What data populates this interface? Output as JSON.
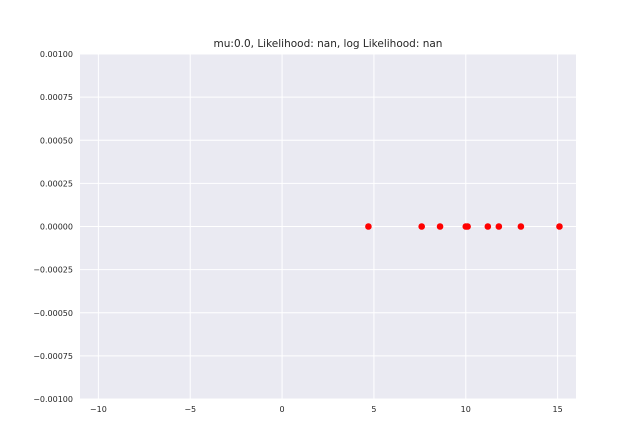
{
  "chart_data": {
    "type": "scatter",
    "title": "mu:0.0, Likelihood:  nan, log Likelihood:  nan",
    "xlabel": "",
    "ylabel": "",
    "xlim": [
      -11,
      16
    ],
    "ylim": [
      -0.001,
      0.001
    ],
    "xticks": [
      -10,
      -5,
      0,
      5,
      10,
      15
    ],
    "xtick_labels": [
      "−10",
      "−5",
      "0",
      "5",
      "10",
      "15"
    ],
    "yticks": [
      -0.001,
      -0.00075,
      -0.0005,
      -0.00025,
      0,
      0.00025,
      0.0005,
      0.00075,
      0.001
    ],
    "ytick_labels": [
      "−0.00100",
      "−0.00075",
      "−0.00050",
      "−0.00025",
      "0.00000",
      "0.00025",
      "0.00050",
      "0.00075",
      "0.00100"
    ],
    "grid": true,
    "series": [
      {
        "color": "#ff0000",
        "x": [
          4.7,
          7.6,
          8.6,
          10.0,
          10.1,
          11.2,
          11.8,
          13.0,
          15.1
        ],
        "y": [
          0,
          0,
          0,
          0,
          0,
          0,
          0,
          0,
          0
        ]
      }
    ],
    "colors": {
      "background": "#eaeaf2",
      "grid": "#ffffff",
      "text": "#262626"
    }
  }
}
